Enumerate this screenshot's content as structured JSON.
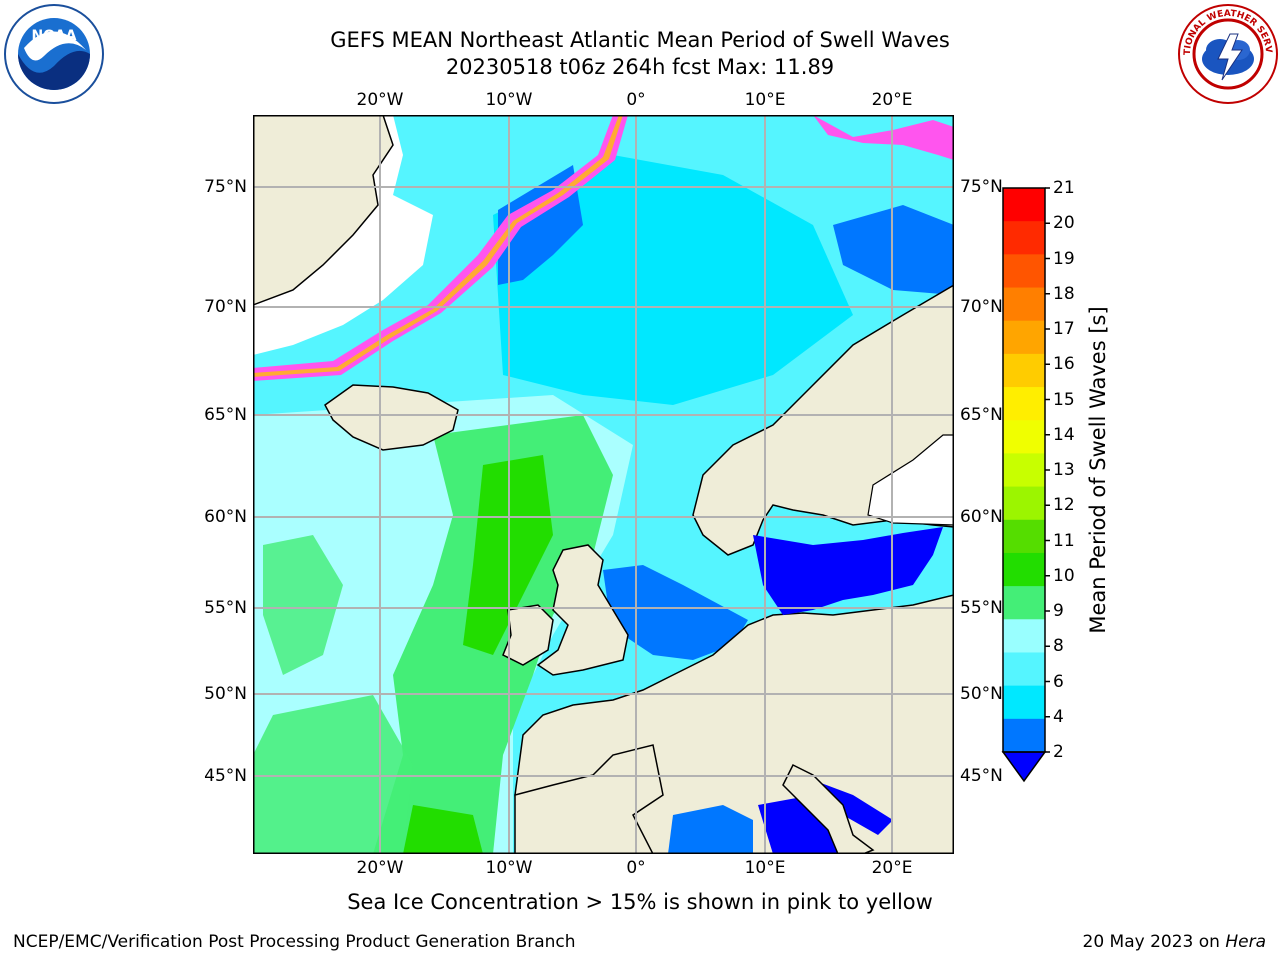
{
  "header": {
    "title_line1": "GEFS MEAN Northeast Atlantic Mean Period of Swell Waves",
    "title_line2": "20230518 t06z 264h fcst   Max: 11.89"
  },
  "logos": {
    "left": {
      "name": "noaa-logo",
      "text": "NOAA"
    },
    "right": {
      "name": "nws-logo",
      "text": "NATIONAL WEATHER SERVICE"
    }
  },
  "map": {
    "lon_labels": [
      "20°W",
      "10°W",
      "0°",
      "10°E",
      "20°E"
    ],
    "lat_labels": [
      "75°N",
      "70°N",
      "65°N",
      "60°N",
      "55°N",
      "50°N",
      "45°N"
    ],
    "gridlines": true
  },
  "colorbar": {
    "label": "Mean Period of Swell Waves [s]",
    "ticks": [
      "21",
      "20",
      "19",
      "18",
      "17",
      "16",
      "15",
      "14",
      "13",
      "12",
      "11",
      "10",
      "9",
      "8",
      "6",
      "4",
      "2"
    ],
    "colors": [
      "#ff0000",
      "#ff2a00",
      "#ff5500",
      "#ff7f00",
      "#ffa500",
      "#ffcc00",
      "#ffee00",
      "#f0ff00",
      "#c8ff00",
      "#9cf500",
      "#55dd00",
      "#22dd00",
      "#44ee77",
      "#99ffff",
      "#55f5ff",
      "#00e8ff",
      "#0077ff"
    ],
    "under_color": "#0000ff"
  },
  "caption": "Sea Ice Concentration > 15% is shown in pink to yellow",
  "footer": {
    "left": "NCEP/EMC/Verification Post Processing Product Generation Branch",
    "right_date": "20 May 2023 on ",
    "right_machine": "Hera"
  },
  "palette": {
    "land": "#efedd8",
    "ocean_light": "#aaffff",
    "ocean_mid": "#55f5ff",
    "ocean_cyan": "#00e8ff",
    "green": "#44ee77",
    "bright_green": "#22dd00",
    "blue": "#0077ff",
    "deep_blue": "#0000ff",
    "ice_pink": "#ff55ee",
    "ice_orange": "#ffaa33",
    "ice_yellow": "#ffee55"
  }
}
